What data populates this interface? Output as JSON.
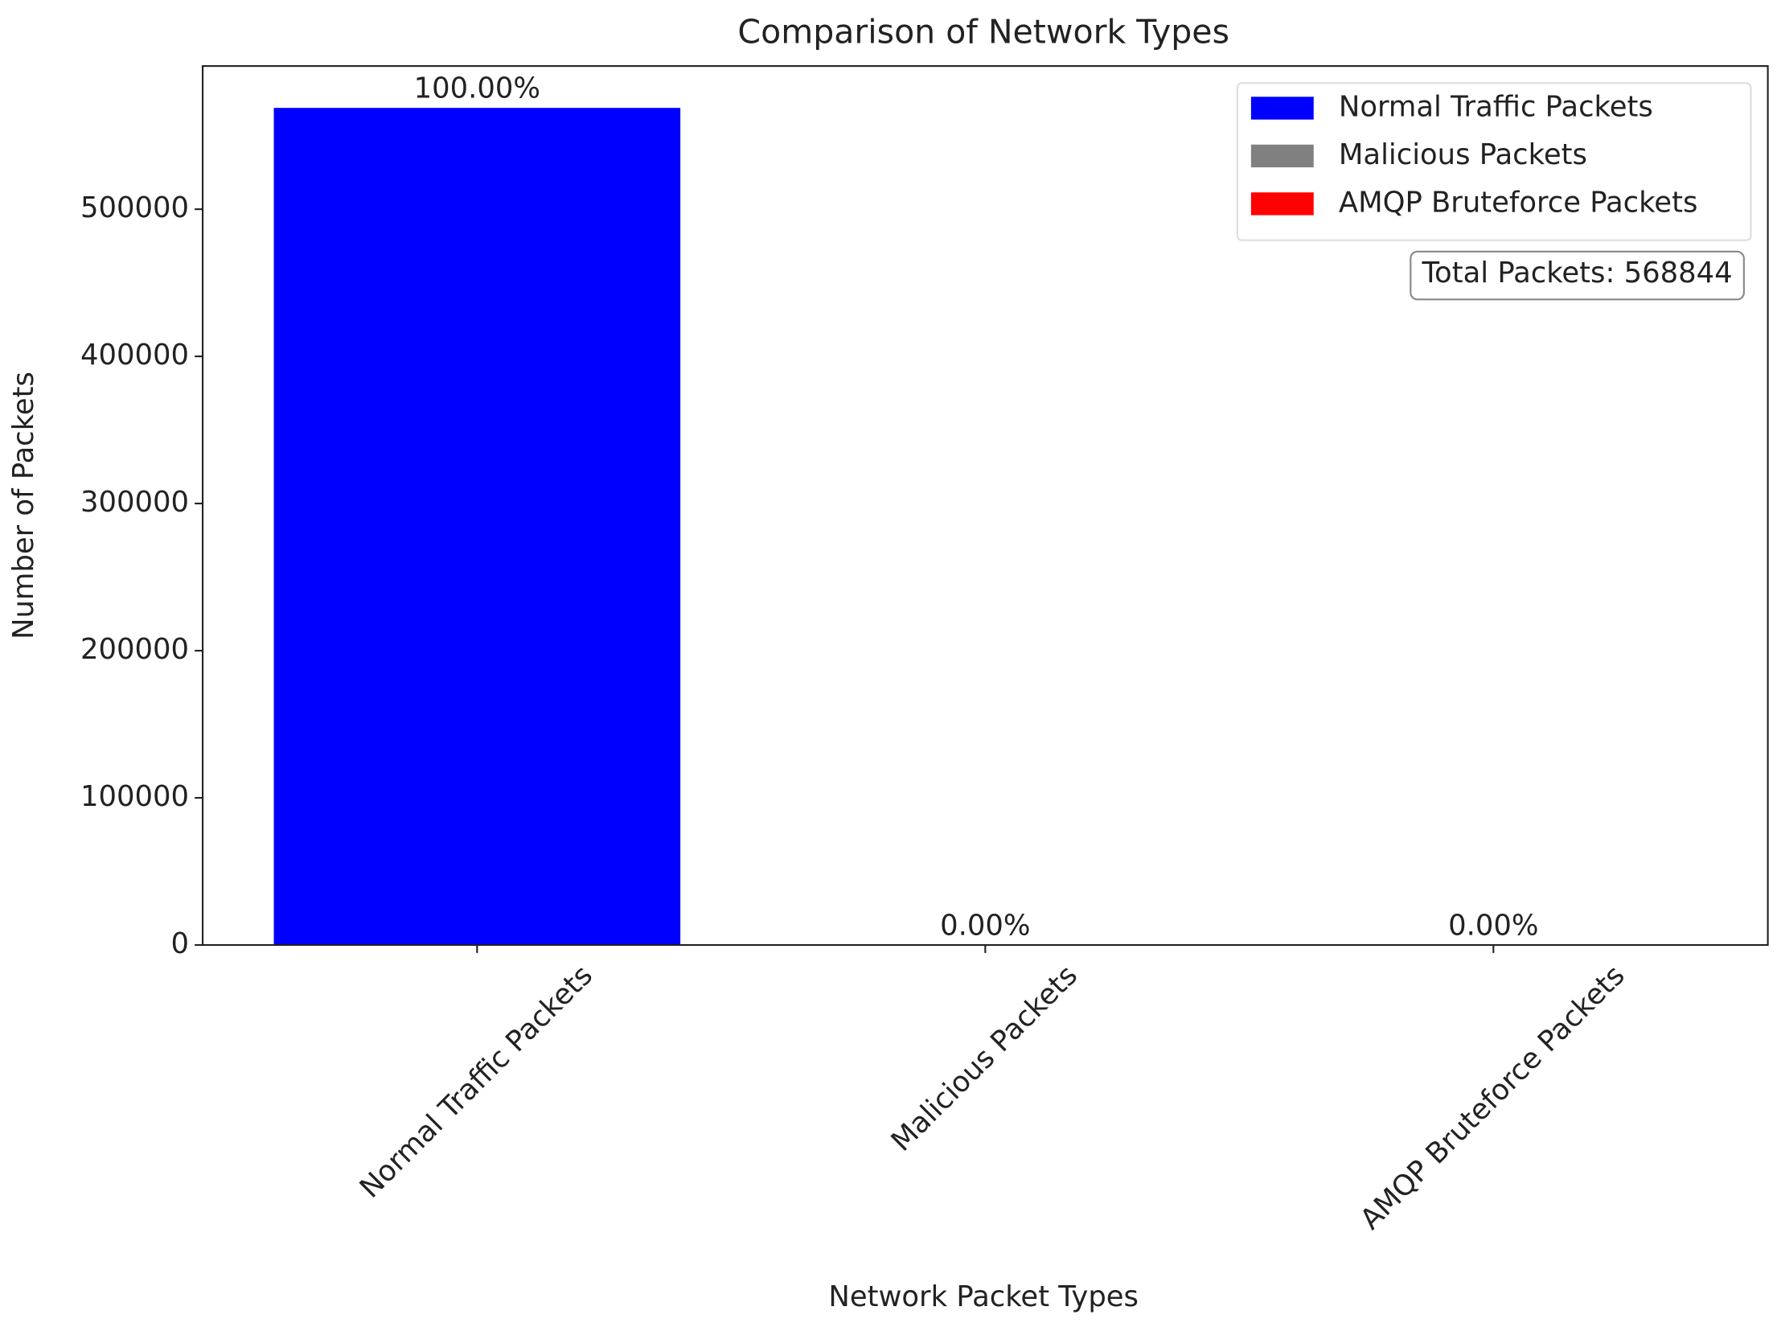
{
  "chart_data": {
    "type": "bar",
    "title": "Comparison of Network Types",
    "xlabel": "Network Packet Types",
    "ylabel": "Number of Packets",
    "categories": [
      "Normal Traffic Packets",
      "Malicious Packets",
      "AMQP Bruteforce Packets"
    ],
    "values": [
      568844,
      0,
      0
    ],
    "value_labels": [
      "100.00%",
      "0.00%",
      "0.00%"
    ],
    "colors": [
      "#0000ff",
      "#808080",
      "#ff0000"
    ],
    "ylim": [
      0,
      597286
    ],
    "yticks": [
      0,
      100000,
      200000,
      300000,
      400000,
      500000
    ],
    "legend": "upper right",
    "annotation": "Total Packets: 568844"
  }
}
